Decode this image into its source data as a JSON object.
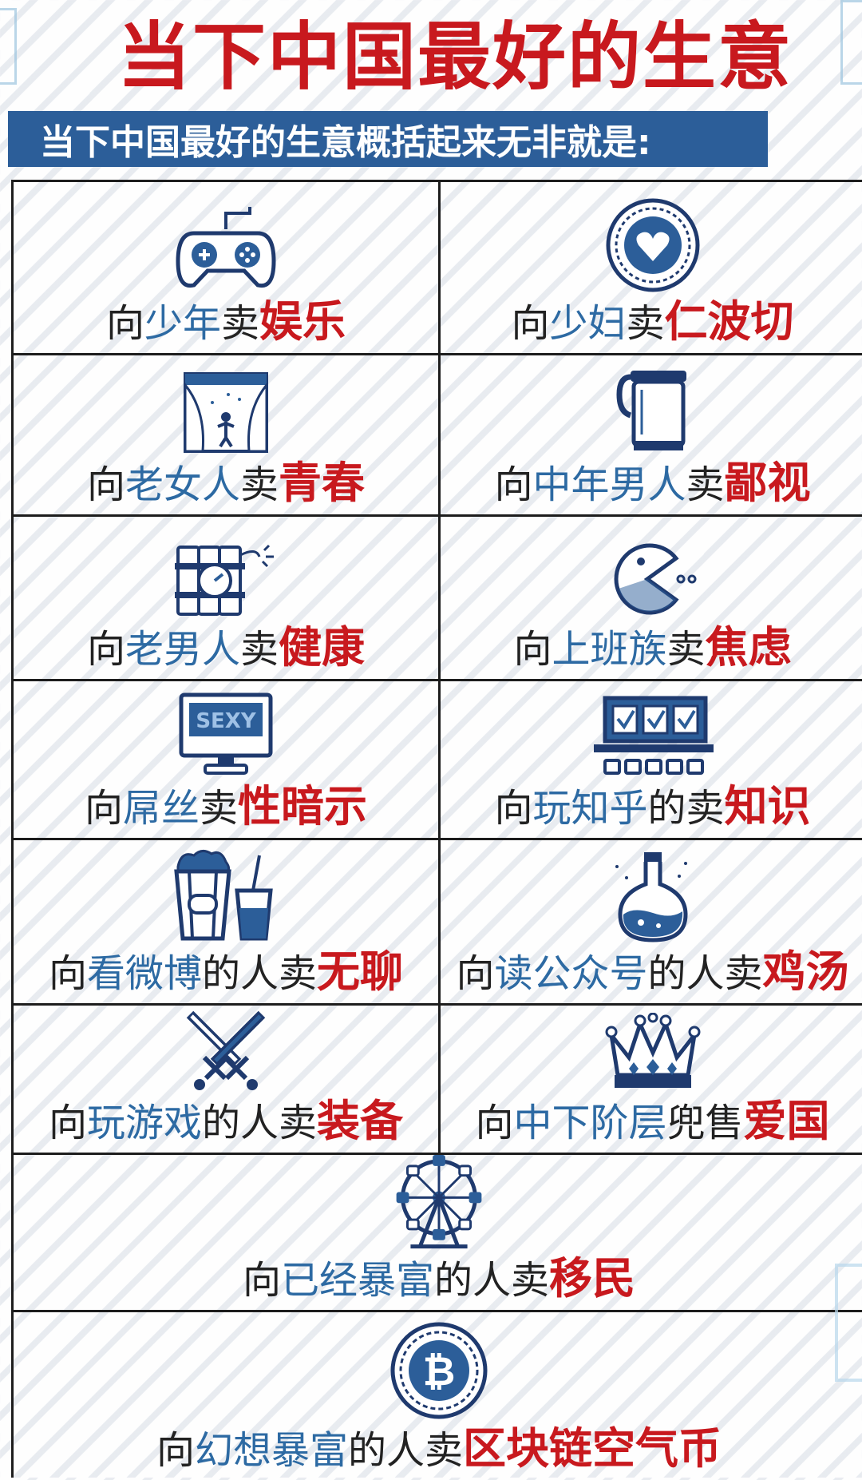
{
  "title": "当下中国最好的生意",
  "subtitle": "当下中国最好的生意概括起来无非就是:",
  "colors": {
    "title_red": "#c8191e",
    "bar_blue": "#2c5e99",
    "icon_navy": "#1f3a6e",
    "who_blue": "#2d6aa3"
  },
  "items": [
    {
      "icon": "game-controller-icon",
      "pre": "向",
      "who": "少年",
      "sell": "卖",
      "what": "娱乐"
    },
    {
      "icon": "heart-coin-icon",
      "pre": "向",
      "who": "少妇",
      "sell": "卖",
      "what": "仁波切"
    },
    {
      "icon": "theater-stage-icon",
      "pre": "向",
      "who": "老女人",
      "sell": "卖",
      "what": "青春"
    },
    {
      "icon": "thermos-mug-icon",
      "pre": "向",
      "who": "中年男人",
      "sell": "卖",
      "what": "鄙视"
    },
    {
      "icon": "dynamite-bomb-icon",
      "pre": "向",
      "who": "老男人",
      "sell": "卖",
      "what": "健康"
    },
    {
      "icon": "pacman-icon",
      "pre": "向",
      "who": "上班族",
      "sell": "卖",
      "what": "焦虑"
    },
    {
      "icon": "tv-monitor-icon",
      "icon_text": "SEXY",
      "pre": "向",
      "who": "屌丝",
      "sell": "卖",
      "what": "性暗示"
    },
    {
      "icon": "checklist-board-icon",
      "pre": "向",
      "who": "玩知乎",
      "sell": "的卖",
      "what": "知识"
    },
    {
      "icon": "popcorn-drink-icon",
      "pre": "向",
      "who": "看微博",
      "sell": "的人卖",
      "what": "无聊"
    },
    {
      "icon": "potion-flask-icon",
      "pre": "向",
      "who": "读公众号",
      "sell": "的人卖",
      "what": "鸡汤"
    },
    {
      "icon": "crossed-swords-icon",
      "pre": "向",
      "who": "玩游戏",
      "sell": "的人卖",
      "what": "装备"
    },
    {
      "icon": "crown-icon",
      "pre": "向",
      "who": "中下阶层",
      "sell": "兜售",
      "what": "爱国"
    },
    {
      "icon": "ferris-wheel-icon",
      "pre": "向",
      "who": "已经暴富",
      "sell": "的人卖",
      "what": "移民"
    },
    {
      "icon": "bitcoin-icon",
      "pre": "向",
      "who": "幻想暴富",
      "sell": "的人卖",
      "what": "区块链空气币"
    }
  ]
}
